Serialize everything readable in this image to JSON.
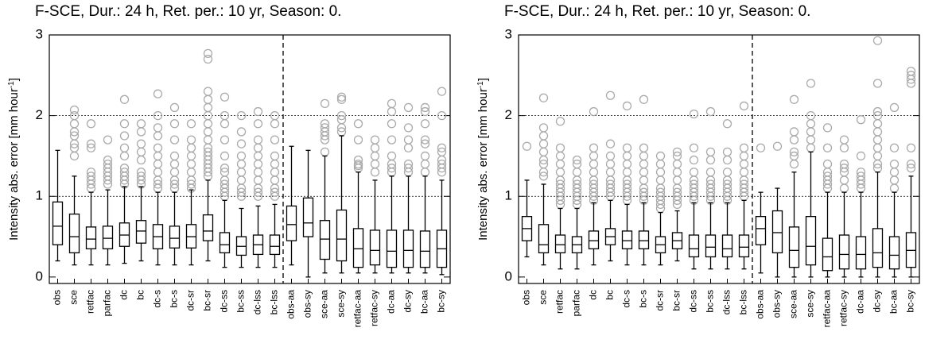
{
  "chart_data": [
    {
      "type": "box",
      "title": "F-SCE, Dur.:  24 h, Ret. per.:  10 yr, Season:  0.",
      "y_label": [
        "Intensity abs. error [mm hour",
        "-1",
        "]"
      ],
      "categories": [
        "obs",
        "sce",
        "retfac",
        "parfac",
        "dc",
        "bc",
        "dc-s",
        "bc-s",
        "dc-sr",
        "bc-sr",
        "dc-ss",
        "bc-ss",
        "dc-lss",
        "bc-lss",
        "obs-aa",
        "obs-sy",
        "sce-aa",
        "sce-sy",
        "retfac-aa",
        "retfac-sy",
        "dc-aa",
        "dc-sy",
        "bc-aa",
        "bc-sy"
      ],
      "whisker_low": [
        0.2,
        0.15,
        0.15,
        0.15,
        0.17,
        0.2,
        0.15,
        0.15,
        0.15,
        0.2,
        0.12,
        0.12,
        0.12,
        0.12,
        0.15,
        0.0,
        0.05,
        0.05,
        0.05,
        0.05,
        0.05,
        0.05,
        0.05,
        0.03
      ],
      "q1": [
        0.4,
        0.3,
        0.35,
        0.35,
        0.38,
        0.42,
        0.35,
        0.36,
        0.36,
        0.45,
        0.3,
        0.27,
        0.28,
        0.28,
        0.45,
        0.5,
        0.22,
        0.2,
        0.12,
        0.15,
        0.12,
        0.12,
        0.12,
        0.12
      ],
      "median": [
        0.63,
        0.5,
        0.47,
        0.48,
        0.52,
        0.57,
        0.5,
        0.48,
        0.5,
        0.57,
        0.4,
        0.38,
        0.4,
        0.38,
        0.65,
        0.67,
        0.47,
        0.47,
        0.35,
        0.33,
        0.32,
        0.33,
        0.32,
        0.35
      ],
      "q3": [
        0.93,
        0.78,
        0.62,
        0.63,
        0.67,
        0.7,
        0.65,
        0.63,
        0.65,
        0.77,
        0.55,
        0.5,
        0.52,
        0.52,
        0.88,
        0.98,
        0.7,
        0.83,
        0.6,
        0.58,
        0.58,
        0.58,
        0.57,
        0.58
      ],
      "whisker_high": [
        1.57,
        1.25,
        1.05,
        1.08,
        1.12,
        1.12,
        1.05,
        1.05,
        1.08,
        1.2,
        0.95,
        0.85,
        0.88,
        0.9,
        1.62,
        1.57,
        1.5,
        1.75,
        1.3,
        1.2,
        1.25,
        1.25,
        1.25,
        1.2
      ],
      "outliers": [
        [],
        [
          1.5,
          1.6,
          1.65,
          1.75,
          1.8,
          1.9,
          2.0,
          2.07
        ],
        [
          1.1,
          1.15,
          1.2,
          1.25,
          1.3,
          1.6,
          1.65,
          1.9
        ],
        [
          1.15,
          1.2,
          1.25,
          1.3,
          1.35,
          1.4,
          1.45,
          1.7
        ],
        [
          1.15,
          1.2,
          1.25,
          1.3,
          1.35,
          1.5,
          1.6,
          1.75,
          1.9,
          2.2
        ],
        [
          1.15,
          1.2,
          1.25,
          1.3,
          1.45,
          1.55,
          1.65,
          1.8,
          1.9
        ],
        [
          1.1,
          1.15,
          1.2,
          1.3,
          1.4,
          1.5,
          1.6,
          1.75,
          1.85,
          2.0,
          2.27
        ],
        [
          1.1,
          1.15,
          1.2,
          1.3,
          1.4,
          1.5,
          1.7,
          1.9,
          2.1
        ],
        [
          1.1,
          1.15,
          1.2,
          1.3,
          1.4,
          1.5,
          1.6,
          1.7,
          1.9
        ],
        [
          1.25,
          1.3,
          1.35,
          1.4,
          1.45,
          1.5,
          1.55,
          1.6,
          1.7,
          1.8,
          1.9,
          2.0,
          2.1,
          2.2,
          2.3,
          2.7,
          2.77
        ],
        [
          1.0,
          1.05,
          1.1,
          1.15,
          1.2,
          1.3,
          1.35,
          1.5,
          1.7,
          1.9,
          2.0,
          2.23
        ],
        [
          1.0,
          1.05,
          1.1,
          1.2,
          1.3,
          1.4,
          1.5,
          1.65,
          1.8,
          2.0
        ],
        [
          1.0,
          1.05,
          1.1,
          1.2,
          1.3,
          1.4,
          1.5,
          1.6,
          1.7,
          1.9,
          2.05
        ],
        [
          1.0,
          1.05,
          1.1,
          1.2,
          1.3,
          1.4,
          1.5,
          1.7,
          1.9,
          2.0
        ],
        [],
        [],
        [
          1.55,
          1.7,
          1.75,
          1.8,
          1.85,
          1.9,
          2.15
        ],
        [
          1.8,
          1.85,
          1.95,
          2.0,
          2.2,
          2.23
        ],
        [
          1.35,
          1.38,
          1.4,
          1.45,
          1.7,
          1.9
        ],
        [
          1.3,
          1.4,
          1.5,
          1.6,
          1.7
        ],
        [
          1.3,
          1.35,
          1.4,
          1.5,
          1.7,
          1.9,
          2.05,
          2.15
        ],
        [
          1.3,
          1.35,
          1.4,
          1.6,
          1.7,
          1.85,
          2.1
        ],
        [
          1.3,
          1.4,
          1.5,
          1.65,
          1.7,
          1.9,
          2.05,
          2.1
        ],
        [
          1.3,
          1.35,
          1.4,
          1.45,
          1.55,
          1.6,
          2.0,
          2.3
        ]
      ],
      "ylim": [
        -0.08,
        3.0
      ],
      "yticks": [
        0,
        1,
        2,
        3
      ],
      "grid": true,
      "box_color": "#000000",
      "outlier_color": "#aaaaaa"
    },
    {
      "type": "box",
      "title": "F-SCE, Dur.:  24 h, Ret. per.:  10 yr, Season:  0.",
      "y_label": [
        "Intensity abs. error [mm hour",
        "-1",
        "]"
      ],
      "categories": [
        "obs",
        "sce",
        "retfac",
        "parfac",
        "dc",
        "bc",
        "dc-s",
        "bc-s",
        "dc-sr",
        "bc-sr",
        "dc-ss",
        "bc-ss",
        "dc-lss",
        "bc-lss",
        "obs-aa",
        "obs-sy",
        "sce-aa",
        "sce-sy",
        "retfac-aa",
        "retfac-sy",
        "dc-aa",
        "dc-sy",
        "bc-aa",
        "bc-sy"
      ],
      "whisker_low": [
        0.25,
        0.15,
        0.1,
        0.1,
        0.15,
        0.2,
        0.15,
        0.15,
        0.15,
        0.2,
        0.1,
        0.1,
        0.1,
        0.1,
        0.05,
        0.0,
        0.0,
        0.0,
        0.0,
        0.0,
        0.0,
        0.0,
        0.0,
        0.0
      ],
      "q1": [
        0.45,
        0.3,
        0.3,
        0.3,
        0.35,
        0.4,
        0.35,
        0.35,
        0.3,
        0.35,
        0.25,
        0.25,
        0.25,
        0.25,
        0.4,
        0.3,
        0.12,
        0.15,
        0.08,
        0.1,
        0.1,
        0.12,
        0.1,
        0.12
      ],
      "median": [
        0.6,
        0.4,
        0.4,
        0.4,
        0.45,
        0.5,
        0.45,
        0.45,
        0.4,
        0.45,
        0.35,
        0.37,
        0.35,
        0.37,
        0.6,
        0.55,
        0.33,
        0.38,
        0.25,
        0.28,
        0.28,
        0.3,
        0.27,
        0.33
      ],
      "q3": [
        0.75,
        0.65,
        0.52,
        0.5,
        0.57,
        0.6,
        0.57,
        0.57,
        0.5,
        0.55,
        0.52,
        0.52,
        0.52,
        0.52,
        0.75,
        0.82,
        0.62,
        0.75,
        0.48,
        0.52,
        0.5,
        0.6,
        0.5,
        0.55
      ],
      "whisker_high": [
        1.2,
        1.15,
        0.85,
        0.85,
        0.92,
        0.95,
        0.9,
        0.92,
        0.8,
        0.82,
        0.92,
        0.92,
        0.92,
        0.95,
        1.05,
        1.1,
        1.3,
        1.55,
        1.05,
        1.05,
        1.05,
        1.3,
        1.05,
        1.25
      ],
      "outliers": [
        [
          1.62
        ],
        [
          1.25,
          1.3,
          1.4,
          1.45,
          1.55,
          1.65,
          1.75,
          1.85,
          2.22
        ],
        [
          0.9,
          0.95,
          1.0,
          1.05,
          1.1,
          1.15,
          1.2,
          1.3,
          1.4,
          1.5,
          1.6,
          1.93
        ],
        [
          0.9,
          0.95,
          1.0,
          1.05,
          1.1,
          1.15,
          1.2,
          1.3,
          1.4,
          1.45
        ],
        [
          0.95,
          1.0,
          1.05,
          1.1,
          1.15,
          1.2,
          1.3,
          1.4,
          1.5,
          1.6,
          2.05
        ],
        [
          1.0,
          1.05,
          1.1,
          1.15,
          1.2,
          1.3,
          1.4,
          1.5,
          1.65,
          2.25
        ],
        [
          0.95,
          1.0,
          1.05,
          1.1,
          1.15,
          1.2,
          1.3,
          1.4,
          1.5,
          1.6,
          2.12
        ],
        [
          0.95,
          1.0,
          1.05,
          1.1,
          1.2,
          1.3,
          1.4,
          1.5,
          1.6,
          2.2
        ],
        [
          0.85,
          0.9,
          0.95,
          1.0,
          1.05,
          1.1,
          1.2,
          1.3,
          1.4,
          1.5
        ],
        [
          0.9,
          0.95,
          1.0,
          1.05,
          1.1,
          1.2,
          1.3,
          1.4,
          1.5,
          1.55
        ],
        [
          0.95,
          1.0,
          1.05,
          1.1,
          1.15,
          1.2,
          1.3,
          1.45,
          1.6,
          2.02
        ],
        [
          0.95,
          1.0,
          1.05,
          1.1,
          1.15,
          1.2,
          1.3,
          1.45,
          1.55,
          2.05
        ],
        [
          0.95,
          1.0,
          1.05,
          1.1,
          1.15,
          1.2,
          1.3,
          1.45,
          1.55,
          1.9
        ],
        [
          1.0,
          1.05,
          1.1,
          1.15,
          1.2,
          1.3,
          1.4,
          1.5,
          1.6,
          2.12
        ],
        [
          1.6
        ],
        [
          1.62
        ],
        [
          1.4,
          1.5,
          1.55,
          1.7,
          1.8,
          2.2
        ],
        [
          1.6,
          1.7,
          1.8,
          1.9,
          2.0,
          2.4
        ],
        [
          1.1,
          1.15,
          1.2,
          1.25,
          1.3,
          1.4,
          1.6,
          1.85
        ],
        [
          1.1,
          1.2,
          1.3,
          1.35,
          1.4,
          1.6,
          1.7
        ],
        [
          1.1,
          1.15,
          1.2,
          1.25,
          1.3,
          1.5,
          1.95
        ],
        [
          1.35,
          1.4,
          1.5,
          1.6,
          1.7,
          1.8,
          1.9,
          2.0,
          2.05,
          2.4,
          2.93
        ],
        [
          1.1,
          1.2,
          1.3,
          1.4,
          1.6,
          2.1
        ],
        [
          1.35,
          1.4,
          1.6,
          2.4,
          2.45,
          2.5,
          2.55
        ]
      ],
      "ylim": [
        -0.08,
        3.0
      ],
      "yticks": [
        0,
        1,
        2,
        3
      ],
      "grid": true,
      "box_color": "#000000",
      "outlier_color": "#aaaaaa"
    }
  ]
}
